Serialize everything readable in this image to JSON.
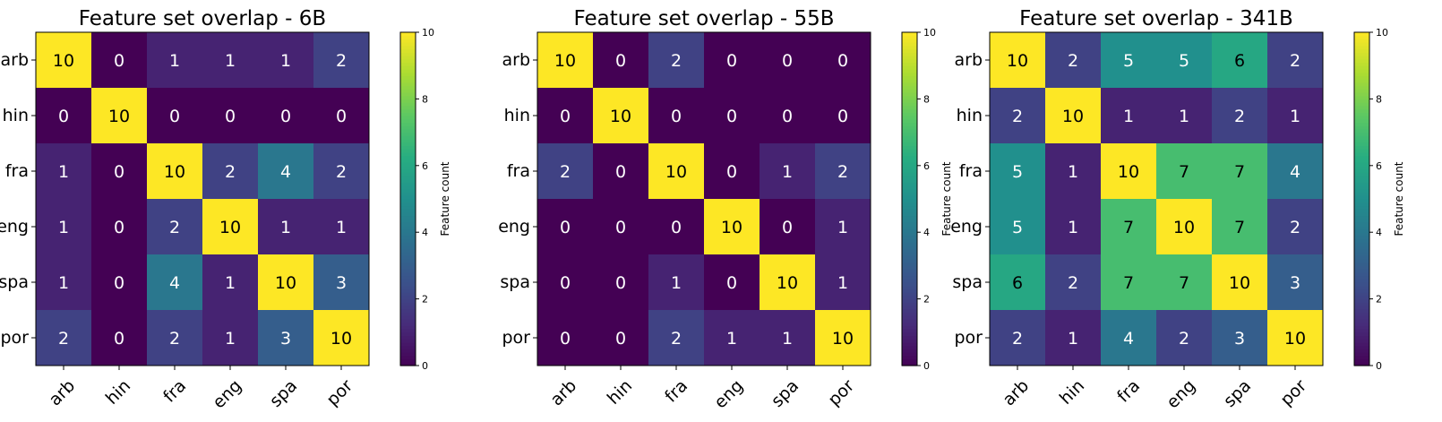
{
  "chart_data": [
    {
      "type": "heatmap",
      "title": "Feature set overlap - 6B",
      "x_labels": [
        "arb",
        "hin",
        "fra",
        "eng",
        "spa",
        "por"
      ],
      "y_labels": [
        "arb",
        "hin",
        "fra",
        "eng",
        "spa",
        "por"
      ],
      "values": [
        [
          10,
          0,
          1,
          1,
          1,
          2
        ],
        [
          0,
          10,
          0,
          0,
          0,
          0
        ],
        [
          1,
          0,
          10,
          2,
          4,
          2
        ],
        [
          1,
          0,
          2,
          10,
          1,
          1
        ],
        [
          1,
          0,
          4,
          1,
          10,
          3
        ],
        [
          2,
          0,
          2,
          1,
          3,
          10
        ]
      ],
      "colorbar": {
        "label": "Feature count",
        "range": [
          0,
          10
        ],
        "ticks": [
          0,
          2,
          4,
          6,
          8,
          10
        ],
        "colormap": "viridis"
      }
    },
    {
      "type": "heatmap",
      "title": "Feature set overlap - 55B",
      "x_labels": [
        "arb",
        "hin",
        "fra",
        "eng",
        "spa",
        "por"
      ],
      "y_labels": [
        "arb",
        "hin",
        "fra",
        "eng",
        "spa",
        "por"
      ],
      "values": [
        [
          10,
          0,
          2,
          0,
          0,
          0
        ],
        [
          0,
          10,
          0,
          0,
          0,
          0
        ],
        [
          2,
          0,
          10,
          0,
          1,
          2
        ],
        [
          0,
          0,
          0,
          10,
          0,
          1
        ],
        [
          0,
          0,
          1,
          0,
          10,
          1
        ],
        [
          0,
          0,
          2,
          1,
          1,
          10
        ]
      ],
      "colorbar": {
        "label": "Feature count",
        "range": [
          0,
          10
        ],
        "ticks": [
          0,
          2,
          4,
          6,
          8,
          10
        ],
        "colormap": "viridis"
      }
    },
    {
      "type": "heatmap",
      "title": "Feature set overlap - 341B",
      "x_labels": [
        "arb",
        "hin",
        "fra",
        "eng",
        "spa",
        "por"
      ],
      "y_labels": [
        "arb",
        "hin",
        "fra",
        "eng",
        "spa",
        "por"
      ],
      "values": [
        [
          10,
          2,
          5,
          5,
          6,
          2
        ],
        [
          2,
          10,
          1,
          1,
          2,
          1
        ],
        [
          5,
          1,
          10,
          7,
          7,
          4
        ],
        [
          5,
          1,
          7,
          10,
          7,
          2
        ],
        [
          6,
          2,
          7,
          7,
          10,
          3
        ],
        [
          2,
          1,
          4,
          2,
          3,
          10
        ]
      ],
      "colorbar": {
        "label": "Feature count",
        "range": [
          0,
          10
        ],
        "ticks": [
          0,
          2,
          4,
          6,
          8,
          10
        ],
        "colormap": "viridis"
      }
    }
  ]
}
